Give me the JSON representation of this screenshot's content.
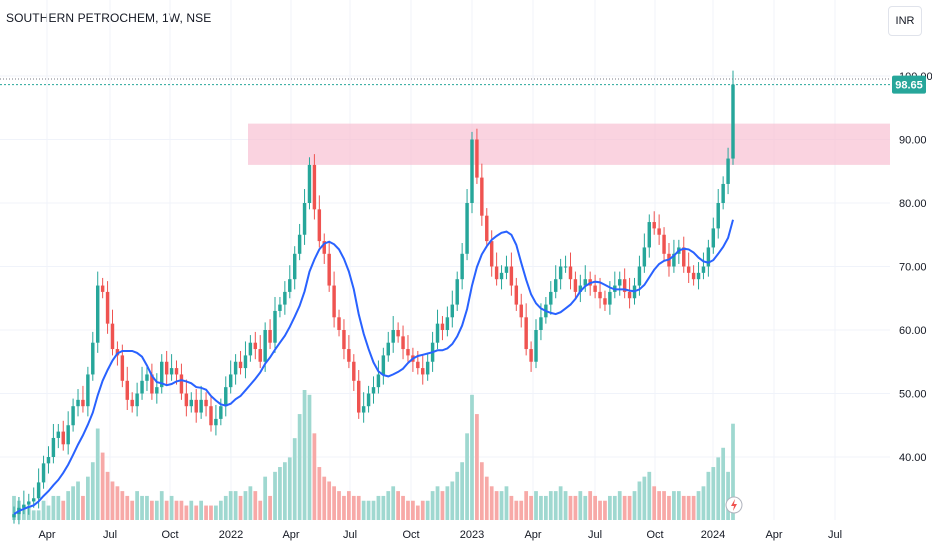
{
  "header": {
    "symbol_title": "SOUTHERN PETROCHEM, 1W, NSE",
    "currency": "INR"
  },
  "price_badge": "98.65",
  "colors": {
    "up": "#26a69a",
    "down": "#ef5350",
    "volume_up": "#9fd8d0",
    "volume_down": "#f7a9a7",
    "moving_average": "#2962ff",
    "zone": "#f8bbd0",
    "grid": "#f0f3fa"
  },
  "chart_data": {
    "type": "candlestick",
    "interval": "1W",
    "y_axis": {
      "ylim": [
        29.6,
        102.6
      ],
      "ticks": [
        "40.00",
        "50.00",
        "60.00",
        "70.00",
        "80.00",
        "90.00",
        "100.00"
      ],
      "position": "right"
    },
    "x_axis": {
      "ticks": [
        "Apr",
        "Jul",
        "Oct",
        "2022",
        "Apr",
        "Jul",
        "Oct",
        "2023",
        "Apr",
        "Jul",
        "Oct",
        "2024",
        "Apr",
        "Jul"
      ]
    },
    "horizontal_zone": {
      "low": 86,
      "high": 92.5
    },
    "last_price": 98.65,
    "close": [
      31,
      32,
      32.5,
      33,
      33.5,
      36,
      39,
      40,
      43,
      44,
      42,
      45,
      48,
      49,
      48,
      53,
      58,
      67,
      66,
      61,
      57,
      56,
      52,
      49,
      48,
      50,
      52,
      53,
      50,
      51,
      55,
      53,
      54,
      53,
      50,
      48,
      49,
      47,
      49,
      48,
      45,
      46,
      48,
      51,
      53,
      55,
      54,
      56,
      58,
      57,
      55,
      60,
      58,
      63,
      64,
      66,
      68,
      72,
      75,
      80,
      86,
      79,
      74,
      72,
      67,
      62,
      60,
      57,
      55,
      52,
      47,
      48,
      50,
      51,
      53,
      56,
      58,
      60,
      59,
      57,
      56,
      55,
      54,
      53,
      55,
      58,
      61,
      60,
      62,
      64,
      68,
      72,
      80,
      90,
      84,
      78,
      74,
      70,
      68,
      69,
      70,
      67,
      64,
      62,
      57,
      55,
      60,
      62,
      64,
      66,
      68,
      70,
      70,
      68,
      66,
      67,
      68,
      67,
      66,
      65,
      64,
      66,
      67,
      68,
      66,
      65,
      67,
      70,
      73,
      77,
      76,
      75,
      72,
      70,
      72,
      73,
      70,
      69,
      68,
      69,
      70,
      73,
      76,
      80,
      83,
      87,
      98.65
    ],
    "volume": [
      5,
      4,
      3,
      3,
      2,
      2,
      4,
      3,
      5,
      5,
      4,
      6,
      7,
      8,
      5,
      9,
      12,
      19,
      14,
      10,
      8,
      7,
      6,
      5,
      4,
      6,
      5,
      5,
      4,
      4,
      6,
      4,
      5,
      4,
      4,
      3,
      4,
      3,
      4,
      3,
      3,
      3,
      4,
      5,
      6,
      6,
      5,
      6,
      7,
      6,
      4,
      9,
      5,
      10,
      11,
      12,
      13,
      17,
      22,
      27,
      26,
      18,
      11,
      9,
      8,
      7,
      6,
      5,
      6,
      5,
      5,
      4,
      4,
      4,
      5,
      5,
      6,
      7,
      6,
      5,
      4,
      4,
      3,
      4,
      4,
      6,
      7,
      6,
      7,
      8,
      10,
      12,
      18,
      26,
      22,
      12,
      9,
      7,
      6,
      6,
      7,
      5,
      4,
      4,
      6,
      5,
      6,
      5,
      5,
      6,
      6,
      7,
      6,
      5,
      5,
      6,
      5,
      6,
      5,
      4,
      4,
      5,
      5,
      6,
      5,
      5,
      6,
      8,
      9,
      10,
      7,
      6,
      6,
      5,
      6,
      6,
      5,
      5,
      5,
      6,
      7,
      10,
      11,
      13,
      15,
      10,
      20
    ]
  }
}
